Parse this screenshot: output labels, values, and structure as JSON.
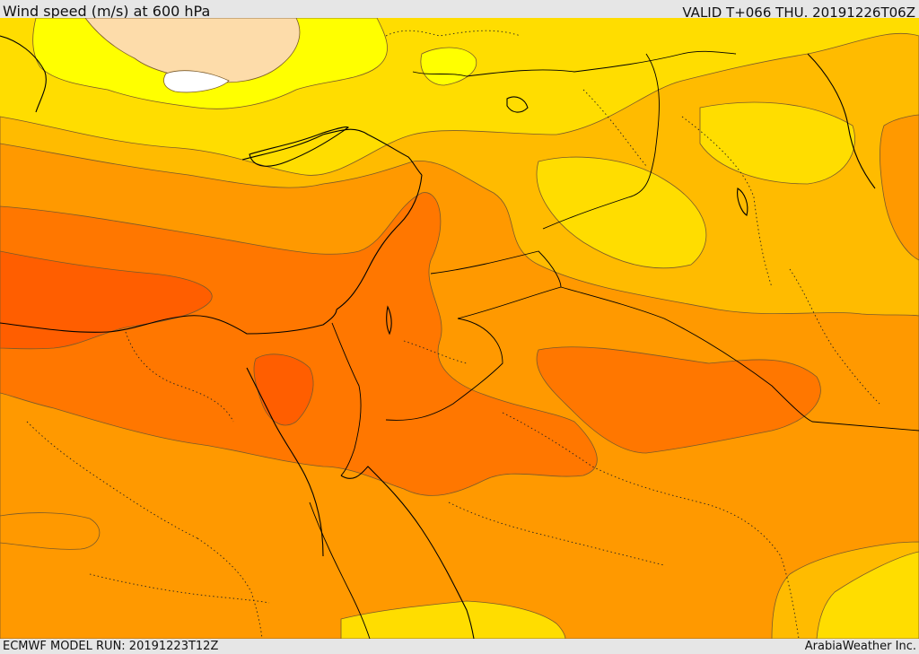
{
  "header": {
    "title": "Wind speed (m/s) at 600 hPa",
    "valid_time": "VALID T+066 THU. 20191226T06Z"
  },
  "footer": {
    "model_run": "ECMWF MODEL RUN: 20191223T12Z",
    "credit": "ArabiaWeather Inc."
  },
  "map": {
    "field": "wind speed",
    "level": "600 hPa",
    "colors": {
      "very_light": "#ffffff",
      "light": "#fddcaa",
      "yellow": "#ffff00",
      "gold": "#ffdd00",
      "amber": "#ffbb00",
      "orange": "#ff9900",
      "dark_orange": "#ff7700",
      "red_orange": "#ff5e00"
    }
  }
}
